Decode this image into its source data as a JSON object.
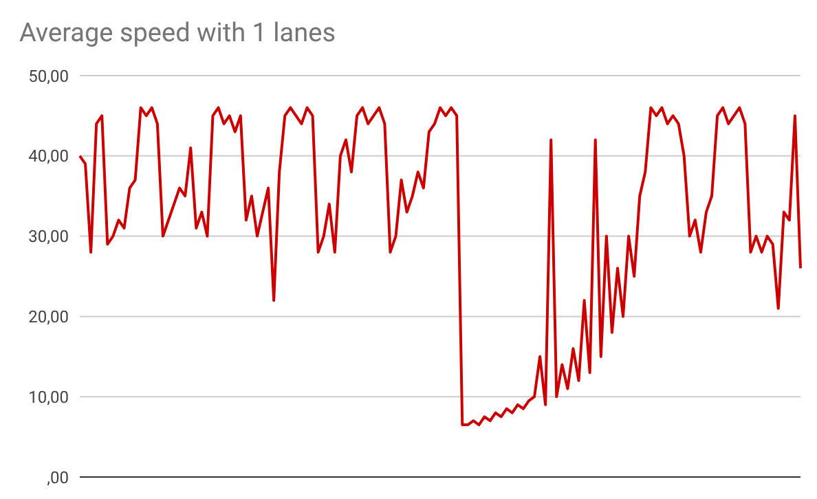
{
  "chart_data": {
    "type": "line",
    "title": "Average speed with 1 lanes",
    "categories": [
      null,
      null,
      null,
      null,
      null,
      null,
      null,
      null,
      null,
      null,
      null,
      null,
      null,
      null,
      null,
      null,
      null,
      null,
      null,
      null,
      null,
      null,
      null,
      null,
      null,
      null,
      null,
      null,
      null,
      null,
      null,
      null,
      null,
      null,
      null,
      null,
      null,
      null,
      null,
      null,
      null,
      null,
      null,
      null,
      null,
      null,
      null,
      null,
      null,
      null,
      null,
      null,
      null,
      null,
      null,
      null,
      null,
      null,
      null,
      null,
      null,
      null,
      null,
      null,
      null,
      null,
      null,
      null,
      null,
      null,
      null,
      null,
      null,
      null,
      null,
      null,
      null,
      null,
      null,
      null,
      null,
      null,
      null,
      null,
      null,
      null,
      null,
      null,
      null,
      null,
      null,
      null,
      null,
      null,
      null,
      null,
      null,
      null,
      null,
      null,
      null,
      null,
      null,
      null,
      null,
      null,
      null,
      null,
      null,
      null,
      null,
      null,
      null,
      null,
      null,
      null,
      null,
      null,
      null,
      null,
      null,
      null,
      null,
      null,
      null,
      null,
      null,
      null,
      null,
      null,
      null
    ],
    "series": [
      {
        "color": "#cc0000",
        "values": [
          40,
          39,
          28,
          44,
          45,
          29,
          30,
          32,
          31,
          36,
          37,
          46,
          45,
          46,
          44,
          30,
          32,
          34,
          36,
          35,
          41,
          31,
          33,
          30,
          45,
          46,
          44,
          45,
          43,
          45,
          32,
          35,
          30,
          33,
          36,
          22,
          38,
          45,
          46,
          45,
          44,
          46,
          45,
          28,
          30,
          34,
          28,
          40,
          42,
          38,
          45,
          46,
          44,
          45,
          46,
          44,
          28,
          30,
          37,
          33,
          35,
          38,
          36,
          43,
          44,
          46,
          45,
          46,
          45,
          6.5,
          6.5,
          7,
          6.5,
          7.5,
          7,
          8,
          7.5,
          8.5,
          8,
          9,
          8.5,
          9.5,
          10,
          15,
          9,
          42,
          10,
          14,
          11,
          16,
          12,
          22,
          13,
          42,
          15,
          30,
          18,
          26,
          20,
          30,
          25,
          35,
          38,
          46,
          45,
          46,
          44,
          45,
          44,
          40,
          30,
          32,
          28,
          33,
          35,
          45,
          46,
          44,
          45,
          46,
          44,
          28,
          30,
          28,
          30,
          29,
          21,
          33,
          32,
          45,
          26
        ]
      }
    ],
    "ylim": [
      0,
      50
    ],
    "yticks": [
      {
        "value": 0,
        "label": ",00"
      },
      {
        "value": 10,
        "label": "10,00"
      },
      {
        "value": 20,
        "label": "20,00"
      },
      {
        "value": 30,
        "label": "30,00"
      },
      {
        "value": 40,
        "label": "40,00"
      },
      {
        "value": 50,
        "label": "50,00"
      }
    ],
    "grid": "y",
    "legend": false,
    "marker": "none",
    "line_style": "solid"
  }
}
